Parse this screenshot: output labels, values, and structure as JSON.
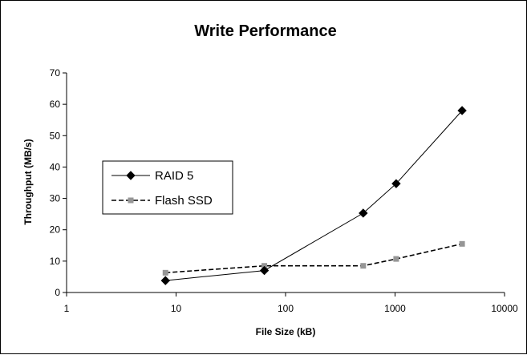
{
  "chart_data": {
    "type": "line",
    "title": "Write Performance",
    "xlabel": "File Size (kB)",
    "ylabel": "Throughput (MB/s)",
    "x_scale": "log",
    "xlim": [
      1,
      10000
    ],
    "ylim": [
      0,
      70
    ],
    "x_ticks": [
      "1",
      "10",
      "100",
      "1000",
      "10000"
    ],
    "y_ticks": [
      "0",
      "10",
      "20",
      "30",
      "40",
      "50",
      "60",
      "70"
    ],
    "grid": false,
    "legend_position": "left",
    "series": [
      {
        "name": "RAID 5",
        "color": "#000000",
        "line_style": "solid",
        "marker": "diamond",
        "x": [
          8,
          64,
          512,
          1024,
          4096
        ],
        "y": [
          3.8,
          7.0,
          25.3,
          34.7,
          58.0
        ]
      },
      {
        "name": "Flash SSD",
        "color": "#000000",
        "marker_color": "#969696",
        "line_style": "dashed",
        "marker": "square",
        "x": [
          8,
          64,
          512,
          1024,
          4096
        ],
        "y": [
          6.3,
          8.5,
          8.5,
          10.7,
          15.5
        ]
      }
    ]
  }
}
